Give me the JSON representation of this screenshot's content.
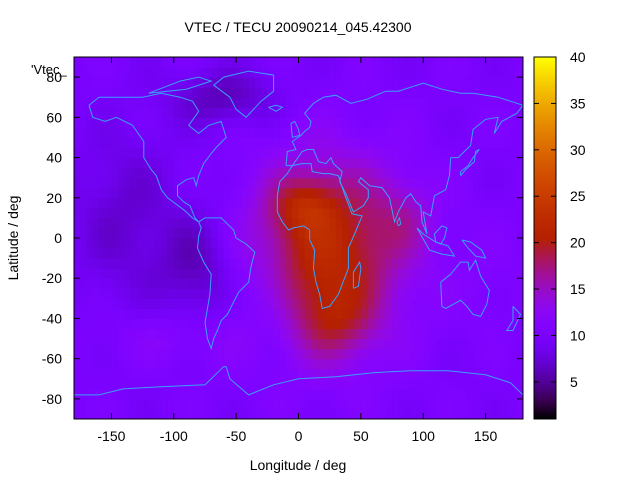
{
  "chart_data": {
    "type": "heatmap",
    "title": "VTEC / TECU 20090214_045.42300",
    "xlabel": "Longitude / deg",
    "ylabel": "Latitude / deg",
    "series_label": "'Vtec_",
    "xlim": [
      -180,
      180
    ],
    "ylim": [
      -90,
      90
    ],
    "xticks": [
      -150,
      -100,
      -50,
      0,
      50,
      100,
      150
    ],
    "yticks": [
      -80,
      -60,
      -40,
      -20,
      0,
      20,
      40,
      60,
      80
    ],
    "colorbar": {
      "range": [
        1,
        40
      ],
      "ticks": [
        5,
        10,
        15,
        20,
        25,
        30,
        35,
        40
      ],
      "palette": "gnuplot black-purple-red-orange-yellow"
    },
    "background_level": 10,
    "field_model": [
      {
        "lon": 22,
        "lat": -8,
        "peak": 12,
        "sigma_lon": 42,
        "sigma_lat": 32
      },
      {
        "lon": 5,
        "lat": 16,
        "peak": 5,
        "sigma_lon": 18,
        "sigma_lat": 9
      },
      {
        "lon": 30,
        "lat": -42,
        "peak": 4,
        "sigma_lon": 20,
        "sigma_lat": 12
      },
      {
        "lon": 85,
        "lat": 10,
        "peak": 3,
        "sigma_lon": 18,
        "sigma_lat": 14
      },
      {
        "lon": -140,
        "lat": 10,
        "peak": -3,
        "sigma_lon": 30,
        "sigma_lat": 30
      },
      {
        "lon": -20,
        "lat": -30,
        "peak": -3,
        "sigma_lon": 15,
        "sigma_lat": 18
      },
      {
        "lon": -80,
        "lat": -15,
        "peak": -4,
        "sigma_lon": 22,
        "sigma_lat": 20
      },
      {
        "lon": -60,
        "lat": 70,
        "peak": -4,
        "sigma_lon": 30,
        "sigma_lat": 10
      },
      {
        "lon": 150,
        "lat": -20,
        "peak": 1,
        "sigma_lon": 25,
        "sigma_lat": 20
      },
      {
        "lon": -100,
        "lat": -50,
        "peak": 2,
        "sigma_lon": 40,
        "sigma_lat": 10
      }
    ]
  },
  "colors": {
    "coastline": "#3aa0ff",
    "colorbar_low": "#000000",
    "colorbar_mid": "#8a00ff",
    "colorbar_high": "#ffff00"
  }
}
